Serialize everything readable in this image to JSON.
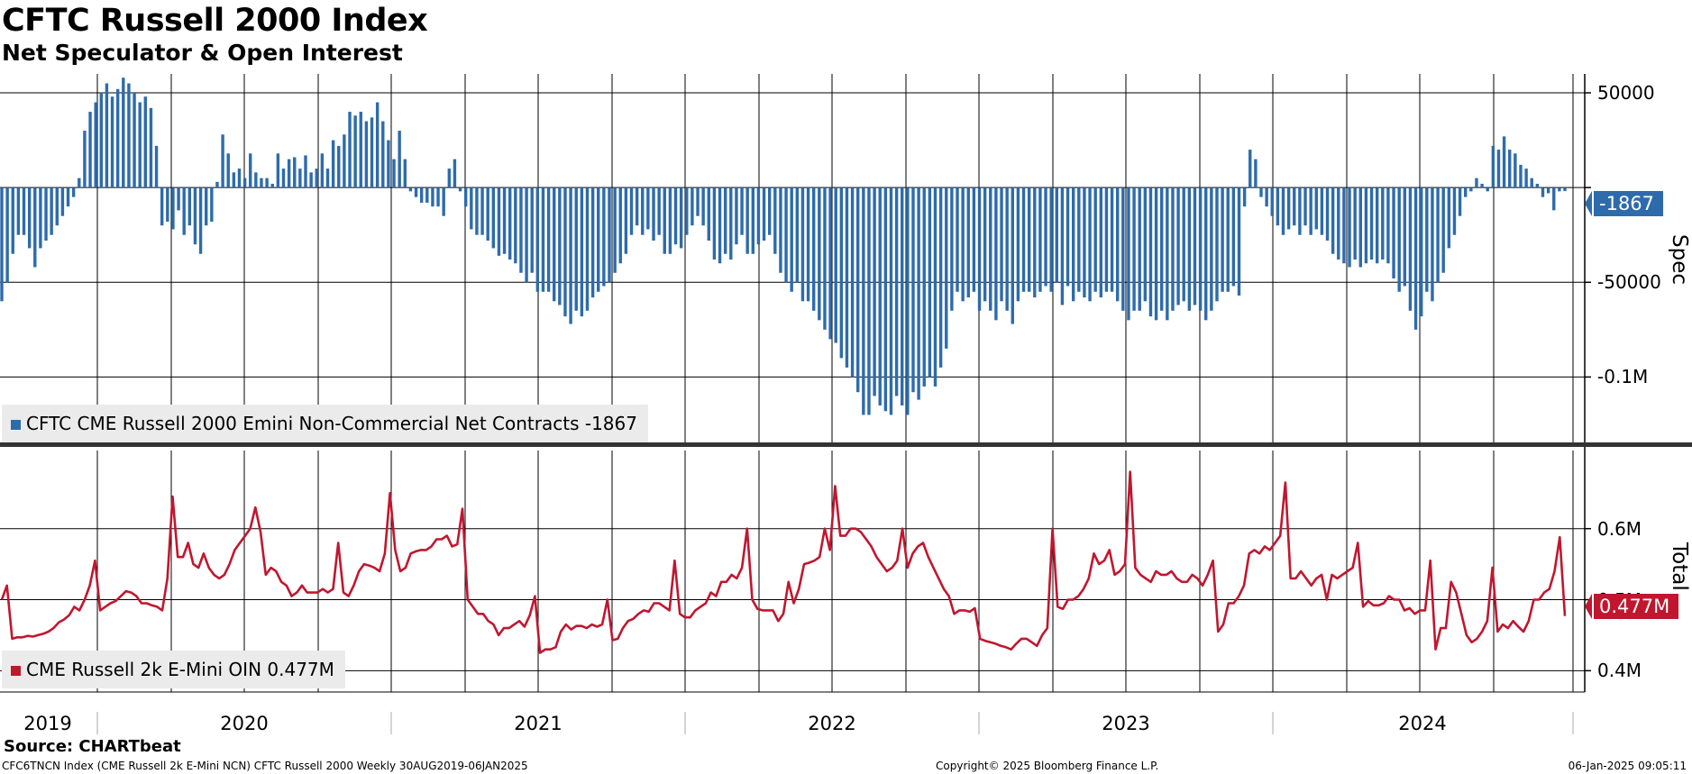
{
  "header": {
    "title": "CFTC Russell 2000 Index",
    "subtitle": "Net Speculator & Open Interest"
  },
  "legend": {
    "spec": "CFTC CME Russell 2000 Emini Non-Commercial Net Contracts -1867",
    "oi": "CME Russell 2k E-Mini OIN 0.477M"
  },
  "colors": {
    "spec": "#2e6bab",
    "oi": "#c0172f",
    "grid": "#000000"
  },
  "footer": {
    "source": "Source: CHARTbeat",
    "left": "CFC6TNCN Index (CME Russell 2k E-Mini NCN) CFTC Russell 2000  Weekly 30AUG2019-06JAN2025",
    "center": "Copyright© 2025 Bloomberg Finance L.P.",
    "right": "06-Jan-2025 09:05:11"
  },
  "chart_data": [
    {
      "type": "bar",
      "panel": "top",
      "axis_label": "Spec",
      "ylim": [
        -135000,
        60000
      ],
      "yticks": [
        {
          "value": 50000,
          "label": "50000"
        },
        {
          "value": -50000,
          "label": "-50000"
        },
        {
          "value": -100000,
          "label": "-0.1M"
        }
      ],
      "last_value_label": "-1867",
      "x_labels": [
        "2019",
        "2020",
        "2021",
        "2022",
        "2023",
        "2024"
      ],
      "grid": true,
      "legend_position": "bottom-left",
      "series": [
        {
          "name": "CFTC CME Russell 2000 Emini Non-Commercial Net Contracts",
          "color": "#2e6bab",
          "values": [
            -60000,
            -50000,
            -35000,
            -25000,
            -25000,
            -32000,
            -42000,
            -32000,
            -28000,
            -25000,
            -20000,
            -15000,
            -10000,
            -5000,
            5000,
            30000,
            40000,
            45000,
            50000,
            55000,
            48000,
            52000,
            58000,
            55000,
            50000,
            45000,
            48000,
            42000,
            22000,
            -20000,
            -18000,
            -22000,
            -12000,
            -25000,
            -20000,
            -30000,
            -35000,
            -20000,
            -18000,
            3000,
            28000,
            18000,
            8000,
            10000,
            5000,
            18000,
            8000,
            5000,
            5000,
            2000,
            18000,
            10000,
            15000,
            16000,
            10000,
            17000,
            8000,
            10000,
            18000,
            10000,
            25000,
            22000,
            28000,
            40000,
            38000,
            40000,
            35000,
            37000,
            45000,
            35000,
            25000,
            15000,
            30000,
            15000,
            -2000,
            -5000,
            -8000,
            -8000,
            -10000,
            -10000,
            -15000,
            10000,
            15000,
            -2000,
            -10000,
            -22000,
            -25000,
            -25000,
            -28000,
            -32000,
            -36000,
            -35000,
            -38000,
            -40000,
            -45000,
            -50000,
            -45000,
            -55000,
            -55000,
            -55000,
            -60000,
            -62000,
            -68000,
            -72000,
            -65000,
            -68000,
            -65000,
            -58000,
            -55000,
            -52000,
            -50000,
            -45000,
            -40000,
            -35000,
            -25000,
            -20000,
            -25000,
            -22000,
            -28000,
            -25000,
            -35000,
            -35000,
            -30000,
            -32000,
            -25000,
            -20000,
            -15000,
            -20000,
            -28000,
            -38000,
            -40000,
            -35000,
            -38000,
            -30000,
            -25000,
            -35000,
            -35000,
            -30000,
            -28000,
            -25000,
            -35000,
            -45000,
            -50000,
            -55000,
            -50000,
            -60000,
            -60000,
            -65000,
            -70000,
            -75000,
            -80000,
            -82000,
            -90000,
            -95000,
            -100000,
            -108000,
            -120000,
            -120000,
            -110000,
            -115000,
            -118000,
            -120000,
            -110000,
            -115000,
            -120000,
            -108000,
            -112000,
            -105000,
            -100000,
            -105000,
            -95000,
            -85000,
            -65000,
            -55000,
            -60000,
            -58000,
            -55000,
            -65000,
            -60000,
            -65000,
            -70000,
            -60000,
            -65000,
            -72000,
            -60000,
            -55000,
            -55000,
            -58000,
            -55000,
            -52000,
            -55000,
            -50000,
            -62000,
            -52000,
            -60000,
            -55000,
            -58000,
            -60000,
            -55000,
            -58000,
            -55000,
            -55000,
            -60000,
            -65000,
            -70000,
            -65000,
            -65000,
            -60000,
            -68000,
            -70000,
            -65000,
            -70000,
            -65000,
            -62000,
            -60000,
            -65000,
            -62000,
            -65000,
            -70000,
            -65000,
            -60000,
            -55000,
            -55000,
            -52000,
            -57000,
            -10000,
            20000,
            15000,
            -5000,
            -10000,
            -15000,
            -20000,
            -25000,
            -22000,
            -20000,
            -25000,
            -20000,
            -25000,
            -22000,
            -25000,
            -28000,
            -35000,
            -38000,
            -40000,
            -42000,
            -38000,
            -42000,
            -40000,
            -38000,
            -40000,
            -38000,
            -40000,
            -48000,
            -55000,
            -52000,
            -65000,
            -75000,
            -68000,
            -55000,
            -60000,
            -50000,
            -45000,
            -32000,
            -25000,
            -15000,
            -5000,
            -2000,
            5000,
            2000,
            -2000,
            22000,
            20000,
            27000,
            20000,
            18000,
            12000,
            10000,
            5000,
            2000,
            -5000,
            -3000,
            -12000,
            -2000,
            -1867
          ]
        }
      ]
    },
    {
      "type": "line",
      "panel": "bottom",
      "axis_label": "Total",
      "ylim": [
        0.37,
        0.71
      ],
      "yticks": [
        {
          "value": 0.6,
          "label": "0.6M"
        },
        {
          "value": 0.5,
          "label": "0.5M"
        },
        {
          "value": 0.4,
          "label": "0.4M"
        }
      ],
      "last_value_label": "0.477M",
      "grid": true,
      "legend_position": "bottom-left",
      "series": [
        {
          "name": "CME Russell 2k E-Mini OIN",
          "color": "#c0172f",
          "values": [
            0.5,
            0.52,
            0.445,
            0.447,
            0.447,
            0.449,
            0.448,
            0.45,
            0.452,
            0.455,
            0.46,
            0.468,
            0.472,
            0.478,
            0.49,
            0.485,
            0.5,
            0.52,
            0.555,
            0.485,
            0.49,
            0.495,
            0.498,
            0.505,
            0.512,
            0.51,
            0.505,
            0.495,
            0.495,
            0.492,
            0.49,
            0.485,
            0.53,
            0.645,
            0.56,
            0.56,
            0.58,
            0.55,
            0.545,
            0.565,
            0.545,
            0.535,
            0.53,
            0.535,
            0.55,
            0.57,
            0.58,
            0.59,
            0.6,
            0.63,
            0.595,
            0.535,
            0.545,
            0.54,
            0.525,
            0.52,
            0.505,
            0.51,
            0.52,
            0.51,
            0.51,
            0.51,
            0.515,
            0.51,
            0.515,
            0.58,
            0.51,
            0.505,
            0.52,
            0.54,
            0.55,
            0.548,
            0.545,
            0.54,
            0.565,
            0.65,
            0.57,
            0.54,
            0.545,
            0.565,
            0.568,
            0.57,
            0.57,
            0.575,
            0.585,
            0.585,
            0.59,
            0.575,
            0.578,
            0.628,
            0.5,
            0.49,
            0.48,
            0.48,
            0.47,
            0.465,
            0.45,
            0.46,
            0.46,
            0.465,
            0.47,
            0.462,
            0.478,
            0.505,
            0.425,
            0.43,
            0.43,
            0.433,
            0.455,
            0.465,
            0.458,
            0.463,
            0.463,
            0.46,
            0.465,
            0.462,
            0.465,
            0.5,
            0.443,
            0.445,
            0.46,
            0.47,
            0.473,
            0.48,
            0.485,
            0.483,
            0.495,
            0.495,
            0.49,
            0.485,
            0.555,
            0.48,
            0.475,
            0.475,
            0.485,
            0.49,
            0.495,
            0.51,
            0.505,
            0.525,
            0.525,
            0.535,
            0.53,
            0.545,
            0.6,
            0.5,
            0.487,
            0.485,
            0.485,
            0.485,
            0.47,
            0.48,
            0.525,
            0.495,
            0.515,
            0.55,
            0.552,
            0.555,
            0.56,
            0.6,
            0.57,
            0.66,
            0.59,
            0.59,
            0.6,
            0.6,
            0.595,
            0.585,
            0.575,
            0.56,
            0.55,
            0.54,
            0.545,
            0.555,
            0.6,
            0.545,
            0.565,
            0.575,
            0.58,
            0.56,
            0.545,
            0.53,
            0.515,
            0.505,
            0.48,
            0.485,
            0.485,
            0.483,
            0.488,
            0.445,
            0.442,
            0.44,
            0.438,
            0.435,
            0.433,
            0.43,
            0.438,
            0.445,
            0.445,
            0.44,
            0.435,
            0.45,
            0.46,
            0.6,
            0.49,
            0.487,
            0.5,
            0.5,
            0.505,
            0.515,
            0.53,
            0.565,
            0.55,
            0.555,
            0.57,
            0.535,
            0.54,
            0.55,
            0.68,
            0.545,
            0.535,
            0.53,
            0.525,
            0.54,
            0.535,
            0.535,
            0.54,
            0.53,
            0.525,
            0.525,
            0.535,
            0.53,
            0.52,
            0.535,
            0.555,
            0.455,
            0.465,
            0.495,
            0.495,
            0.505,
            0.52,
            0.565,
            0.57,
            0.565,
            0.575,
            0.57,
            0.58,
            0.59,
            0.665,
            0.53,
            0.53,
            0.54,
            0.53,
            0.52,
            0.53,
            0.535,
            0.5,
            0.535,
            0.53,
            0.535,
            0.54,
            0.545,
            0.58,
            0.49,
            0.498,
            0.492,
            0.492,
            0.495,
            0.505,
            0.5,
            0.5,
            0.485,
            0.488,
            0.48,
            0.485,
            0.485,
            0.555,
            0.43,
            0.46,
            0.46,
            0.525,
            0.51,
            0.48,
            0.45,
            0.44,
            0.445,
            0.455,
            0.47,
            0.545,
            0.455,
            0.465,
            0.46,
            0.47,
            0.462,
            0.455,
            0.47,
            0.5,
            0.5,
            0.51,
            0.515,
            0.54,
            0.588,
            0.477
          ]
        }
      ]
    }
  ]
}
